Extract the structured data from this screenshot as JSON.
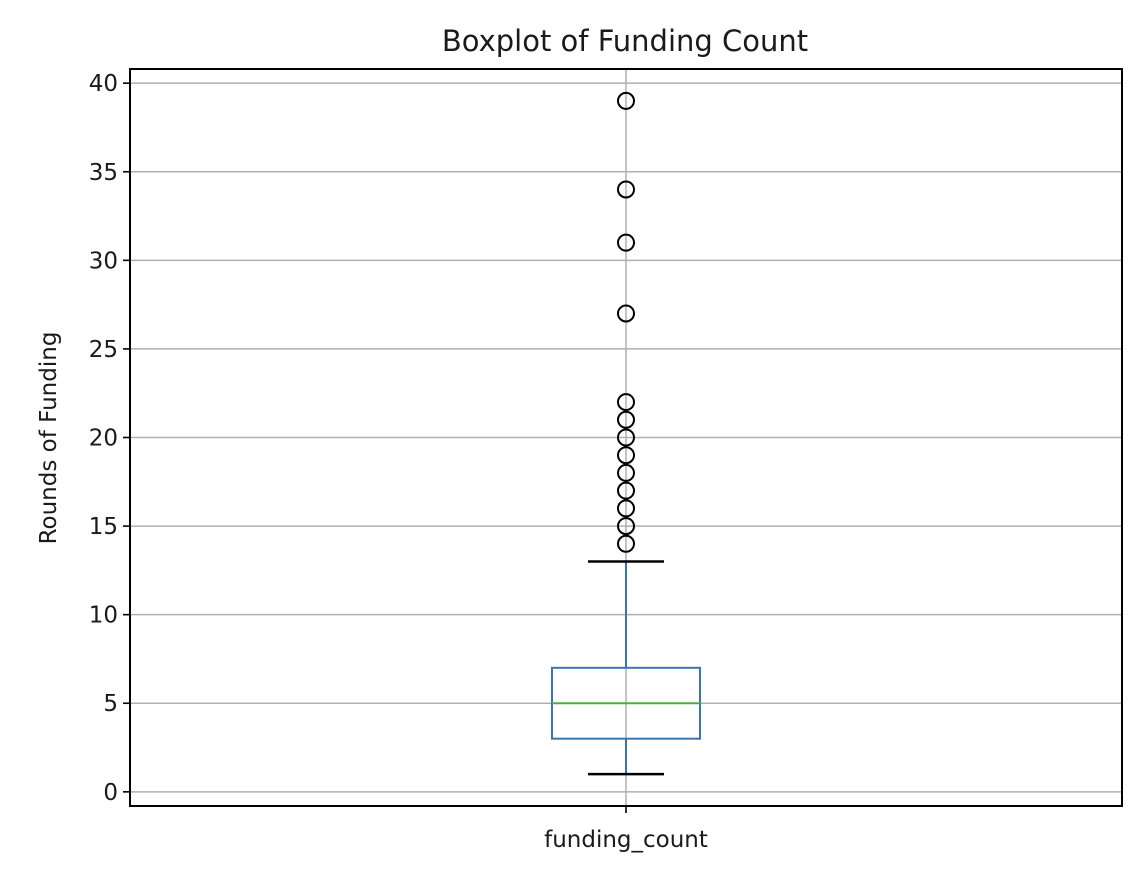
{
  "chart_data": {
    "type": "box",
    "title": "Boxplot of Funding Count",
    "xlabel": "",
    "ylabel": "Rounds of Funding",
    "categories": [
      "funding_count"
    ],
    "ylim": [
      -0.8,
      40.8
    ],
    "yticks": [
      0,
      5,
      10,
      15,
      20,
      25,
      30,
      35,
      40
    ],
    "grid": true,
    "box": {
      "whisker_low": 1,
      "q1": 3,
      "median": 5,
      "q3": 7,
      "whisker_high": 13
    },
    "outliers": [
      14,
      15,
      16,
      17,
      18,
      19,
      20,
      21,
      22,
      27,
      31,
      34,
      39
    ],
    "colors": {
      "box": "#3b75af",
      "median": "#4caf3a",
      "whisker": "#3b75af",
      "cap": "#000000",
      "outlier": "#000000"
    }
  }
}
